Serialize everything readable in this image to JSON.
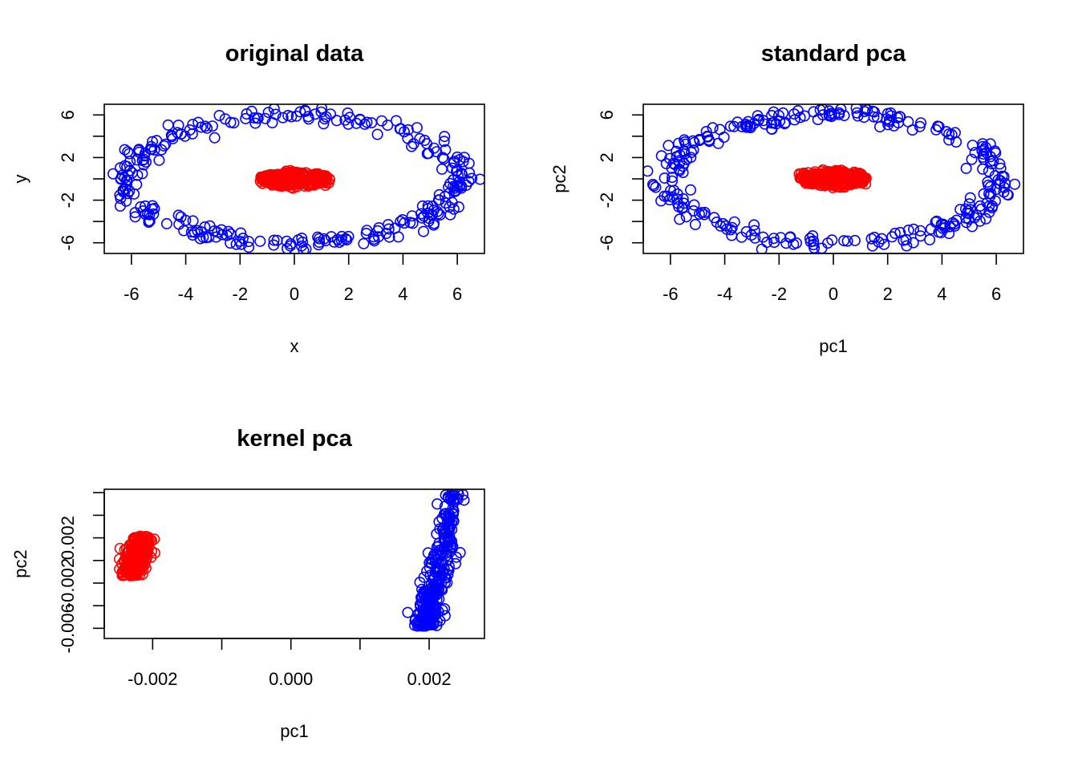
{
  "chart_data": [
    {
      "type": "scatter",
      "title": "original data",
      "xlabel": "x",
      "ylabel": "y",
      "xlim": [
        -7,
        7
      ],
      "ylim": [
        -7,
        7
      ],
      "xticks": [
        -6,
        -4,
        -2,
        0,
        2,
        4,
        6
      ],
      "xtick_labels": [
        "-6",
        "-4",
        "-2",
        "0",
        "2",
        "4",
        "6"
      ],
      "yticks": [
        -6,
        -4,
        -2,
        0,
        2,
        4,
        6
      ],
      "ytick_labels": [
        "-6",
        "",
        "-2",
        "",
        "2",
        "",
        "6"
      ],
      "series": [
        {
          "color": "#0000FF",
          "shape": "ring",
          "n": 300,
          "rx": 6.1,
          "ry": 6.0,
          "noise": 0.35
        },
        {
          "color": "#FF0000",
          "shape": "ring",
          "n": 300,
          "rx": 1.0,
          "ry": 0.45,
          "noise": 0.15
        }
      ]
    },
    {
      "type": "scatter",
      "title": "standard pca",
      "xlabel": "pc1",
      "ylabel": "pc2",
      "xlim": [
        -7,
        7
      ],
      "ylim": [
        -7,
        7
      ],
      "xticks": [
        -6,
        -4,
        -2,
        0,
        2,
        4,
        6
      ],
      "xtick_labels": [
        "-6",
        "-4",
        "-2",
        "0",
        "2",
        "4",
        "6"
      ],
      "yticks": [
        -6,
        -4,
        -2,
        0,
        2,
        4,
        6
      ],
      "ytick_labels": [
        "-6",
        "",
        "-2",
        "",
        "2",
        "",
        "6"
      ],
      "series": [
        {
          "color": "#0000FF",
          "shape": "ring",
          "n": 300,
          "rx": 6.1,
          "ry": 6.0,
          "noise": 0.35
        },
        {
          "color": "#FF0000",
          "shape": "ring",
          "n": 300,
          "rx": 1.0,
          "ry": 0.45,
          "noise": 0.15
        }
      ]
    },
    {
      "type": "scatter",
      "title": "kernel pca",
      "xlabel": "pc1",
      "ylabel": "pc2",
      "xlim": [
        -0.0027,
        0.0028
      ],
      "ylim": [
        -0.0069,
        0.0063
      ],
      "xticks": [
        -0.002,
        -0.001,
        0.0,
        0.001,
        0.002
      ],
      "xtick_labels": [
        "-0.002",
        "",
        "0.000",
        "",
        "0.002"
      ],
      "yticks": [
        -0.006,
        -0.004,
        -0.002,
        0.0,
        0.002,
        0.004,
        0.006
      ],
      "ytick_labels": [
        "-0.006",
        "",
        "-0.002",
        "",
        "0.002",
        "",
        ""
      ],
      "series": [
        {
          "color": "#FF0000",
          "shape": "blob",
          "n": 300,
          "cx": -0.00223,
          "cy": 0.0004,
          "sx": 8e-05,
          "sy": 0.0016
        },
        {
          "color": "#0000FF",
          "shape": "band",
          "n": 300,
          "x0": 0.00195,
          "x1": 0.0024,
          "y0": -0.0058,
          "y1": 0.0062
        }
      ]
    }
  ]
}
